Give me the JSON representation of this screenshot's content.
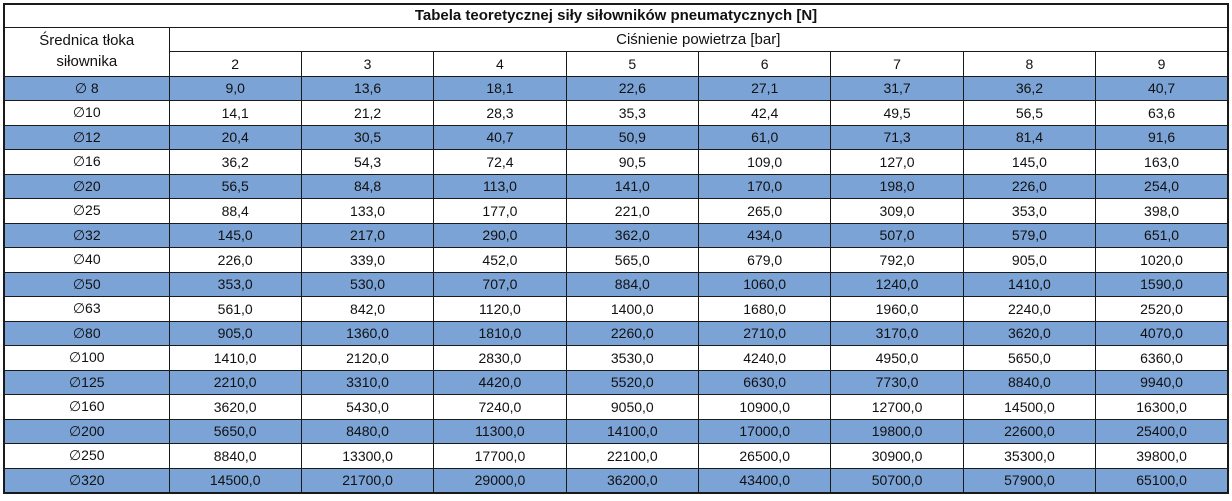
{
  "chart_data": {
    "type": "table",
    "title": "Tabela teoretycznej siły siłowników pneumatycznych [N]",
    "row_header": "Średnica tłoka siłownika",
    "col_group_header": "Ciśnienie powietrza [bar]",
    "pressure_columns": [
      "2",
      "3",
      "4",
      "5",
      "6",
      "7",
      "8",
      "9"
    ],
    "rows": [
      {
        "diameter": "∅ 8",
        "values": [
          "9,0",
          "13,6",
          "18,1",
          "22,6",
          "27,1",
          "31,7",
          "36,2",
          "40,7"
        ]
      },
      {
        "diameter": "∅10",
        "values": [
          "14,1",
          "21,2",
          "28,3",
          "35,3",
          "42,4",
          "49,5",
          "56,5",
          "63,6"
        ]
      },
      {
        "diameter": "∅12",
        "values": [
          "20,4",
          "30,5",
          "40,7",
          "50,9",
          "61,0",
          "71,3",
          "81,4",
          "91,6"
        ]
      },
      {
        "diameter": "∅16",
        "values": [
          "36,2",
          "54,3",
          "72,4",
          "90,5",
          "109,0",
          "127,0",
          "145,0",
          "163,0"
        ]
      },
      {
        "diameter": "∅20",
        "values": [
          "56,5",
          "84,8",
          "113,0",
          "141,0",
          "170,0",
          "198,0",
          "226,0",
          "254,0"
        ]
      },
      {
        "diameter": "∅25",
        "values": [
          "88,4",
          "133,0",
          "177,0",
          "221,0",
          "265,0",
          "309,0",
          "353,0",
          "398,0"
        ]
      },
      {
        "diameter": "∅32",
        "values": [
          "145,0",
          "217,0",
          "290,0",
          "362,0",
          "434,0",
          "507,0",
          "579,0",
          "651,0"
        ]
      },
      {
        "diameter": "∅40",
        "values": [
          "226,0",
          "339,0",
          "452,0",
          "565,0",
          "679,0",
          "792,0",
          "905,0",
          "1020,0"
        ]
      },
      {
        "diameter": "∅50",
        "values": [
          "353,0",
          "530,0",
          "707,0",
          "884,0",
          "1060,0",
          "1240,0",
          "1410,0",
          "1590,0"
        ]
      },
      {
        "diameter": "∅63",
        "values": [
          "561,0",
          "842,0",
          "1120,0",
          "1400,0",
          "1680,0",
          "1960,0",
          "2240,0",
          "2520,0"
        ]
      },
      {
        "diameter": "∅80",
        "values": [
          "905,0",
          "1360,0",
          "1810,0",
          "2260,0",
          "2710,0",
          "3170,0",
          "3620,0",
          "4070,0"
        ]
      },
      {
        "diameter": "∅100",
        "values": [
          "1410,0",
          "2120,0",
          "2830,0",
          "3530,0",
          "4240,0",
          "4950,0",
          "5650,0",
          "6360,0"
        ]
      },
      {
        "diameter": "∅125",
        "values": [
          "2210,0",
          "3310,0",
          "4420,0",
          "5520,0",
          "6630,0",
          "7730,0",
          "8840,0",
          "9940,0"
        ]
      },
      {
        "diameter": "∅160",
        "values": [
          "3620,0",
          "5430,0",
          "7240,0",
          "9050,0",
          "10900,0",
          "12700,0",
          "14500,0",
          "16300,0"
        ]
      },
      {
        "diameter": "∅200",
        "values": [
          "5650,0",
          "8480,0",
          "11300,0",
          "14100,0",
          "17000,0",
          "19800,0",
          "22600,0",
          "25400,0"
        ]
      },
      {
        "diameter": "∅250",
        "values": [
          "8840,0",
          "13300,0",
          "17700,0",
          "22100,0",
          "26500,0",
          "30900,0",
          "35300,0",
          "39800,0"
        ]
      },
      {
        "diameter": "∅320",
        "values": [
          "14500,0",
          "21700,0",
          "29000,0",
          "36200,0",
          "43400,0",
          "50700,0",
          "57900,0",
          "65100,0"
        ]
      }
    ],
    "layout": {
      "alternating_row_fill_starts_at_first_data_row": true,
      "units": "N"
    }
  },
  "colors": {
    "row_alt_blue": "#7CA3D6",
    "row_white": "#FFFFFF",
    "border": "#1a1a1a",
    "text": "#111111"
  }
}
